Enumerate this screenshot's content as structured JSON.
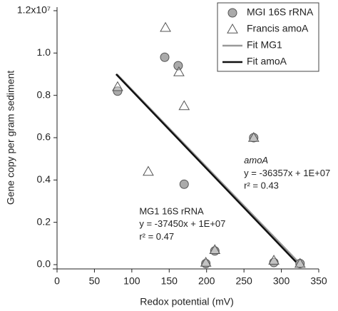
{
  "chart_data": {
    "type": "scatter",
    "x_label": "Redox potential (mV)",
    "y_label": "Gene copy per gram sediment",
    "xlim": [
      0,
      350
    ],
    "xticks": [
      0,
      50,
      100,
      150,
      200,
      250,
      300,
      350
    ],
    "ylim": [
      0,
      1.2
    ],
    "yticks": [
      {
        "value": 0,
        "label": "0.0"
      },
      {
        "value": 0.2,
        "label": "0.2"
      },
      {
        "value": 0.4,
        "label": "0.4"
      },
      {
        "value": 0.6,
        "label": "0.6"
      },
      {
        "value": 0.8,
        "label": "0.8"
      },
      {
        "value": 1.0,
        "label": "1.0"
      },
      {
        "value": 1.2,
        "label": "1.2x10⁷"
      }
    ],
    "legend": "upper right",
    "series": [
      {
        "name": "MGI 16S rRNA",
        "style": "circle",
        "color": "#aaaaaa",
        "x": [
          81,
          144,
          162,
          170,
          211,
          199,
          290,
          325,
          263
        ],
        "values": [
          0.82,
          0.98,
          0.94,
          0.38,
          0.065,
          0.005,
          0.01,
          0.005,
          0.6
        ]
      },
      {
        "name": "Francis amoA",
        "style": "triangle",
        "color": "#ffffff",
        "x": [
          81,
          145,
          163,
          170,
          122,
          211,
          199,
          290,
          263,
          325
        ],
        "values": [
          0.84,
          1.12,
          0.91,
          0.75,
          0.44,
          0.07,
          0.01,
          0.02,
          0.6,
          0.005
        ]
      },
      {
        "name": "Fit MG1",
        "style": "line",
        "color": "#999999",
        "x": [
          80,
          326
        ],
        "values": [
          0.9,
          0.0
        ]
      },
      {
        "name": "Fit amoA",
        "style": "line",
        "color": "#111111",
        "x": [
          79,
          323
        ],
        "values": [
          0.9,
          0.0
        ]
      }
    ],
    "annotations": [
      {
        "text": "amoA",
        "x": 250,
        "y": 0.49
      },
      {
        "text": "y = -36357x + 1E+07",
        "x": 250,
        "y": 0.43
      },
      {
        "text": "r² = 0.43",
        "x": 250,
        "y": 0.37
      },
      {
        "text": "MG1 16S rRNA",
        "x": 110,
        "y": 0.25
      },
      {
        "text": "y = -37450x + 1E+07",
        "x": 110,
        "y": 0.19
      },
      {
        "text": "r² = 0.47",
        "x": 110,
        "y": 0.13
      }
    ]
  }
}
